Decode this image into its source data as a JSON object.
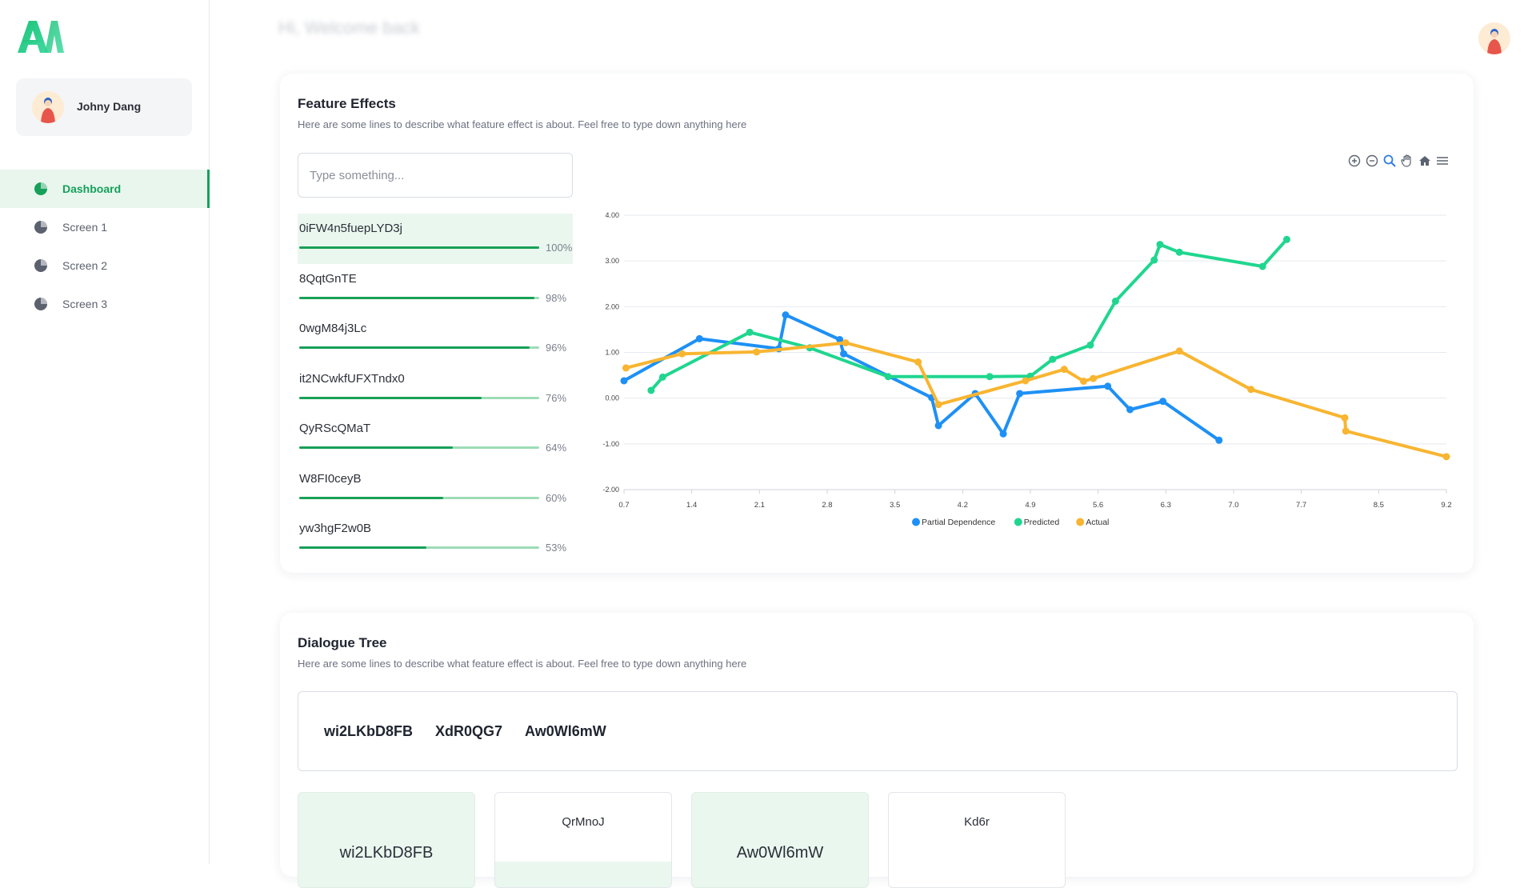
{
  "brand": {
    "logo_text": "AI"
  },
  "user": {
    "name": "Johny Dang"
  },
  "nav": {
    "items": [
      {
        "label": "Dashboard",
        "icon": "pie-chart-icon",
        "active": true
      },
      {
        "label": "Screen 1",
        "icon": "pie-chart-icon",
        "active": false
      },
      {
        "label": "Screen 2",
        "icon": "pie-chart-icon",
        "active": false
      },
      {
        "label": "Screen 3",
        "icon": "pie-chart-icon",
        "active": false
      }
    ]
  },
  "header": {
    "welcome": "Hi, Welcome back"
  },
  "feature_effects": {
    "title": "Feature Effects",
    "subtitle": "Here are some lines to describe what feature effect is about. Feel free to type down anything here",
    "search_placeholder": "Type something...",
    "features": [
      {
        "name": "0iFW4n5fuepLYD3j",
        "pct_label": "100%",
        "value": 1.0,
        "active": true
      },
      {
        "name": "8QqtGnTE",
        "pct_label": "98%",
        "value": 0.98,
        "active": false
      },
      {
        "name": "0wgM84j3Lc",
        "pct_label": "96%",
        "value": 0.96,
        "active": false
      },
      {
        "name": "it2NCwkfUFXTndx0",
        "pct_label": "76%",
        "value": 0.76,
        "active": false
      },
      {
        "name": "QyRScQMaT",
        "pct_label": "64%",
        "value": 0.64,
        "active": false
      },
      {
        "name": "W8FI0ceyB",
        "pct_label": "60%",
        "value": 0.6,
        "active": false
      },
      {
        "name": "yw3hgF2w0B",
        "pct_label": "53%",
        "value": 0.53,
        "active": false
      }
    ],
    "toolbar_icons": [
      "zoom-in-icon",
      "zoom-out-icon",
      "magnifier-icon",
      "pan-hand-icon",
      "home-icon",
      "menu-icon"
    ]
  },
  "chart_data": {
    "type": "line",
    "xlim": [
      0.7,
      9.2
    ],
    "ylim": [
      -2.0,
      4.0
    ],
    "x_ticks": [
      "0.7",
      "1.4",
      "2.1",
      "2.8",
      "3.5",
      "4.2",
      "4.9",
      "5.6",
      "6.3",
      "7.0",
      "7.7",
      "8.5",
      "9.2"
    ],
    "y_ticks": [
      "4.00",
      "3.00",
      "2.00",
      "1.00",
      "0.00",
      "-1.00",
      "-2.00"
    ],
    "legend_position": "bottom",
    "grid": true,
    "series": [
      {
        "name": "Partial Dependence",
        "color": "#1e90f5",
        "points": [
          [
            0.7,
            0.38
          ],
          [
            1.48,
            1.3
          ],
          [
            2.3,
            1.08
          ],
          [
            2.37,
            1.82
          ],
          [
            2.93,
            1.28
          ],
          [
            2.97,
            0.97
          ],
          [
            3.88,
            0.01
          ],
          [
            3.95,
            -0.6
          ],
          [
            4.33,
            0.1
          ],
          [
            4.62,
            -0.78
          ],
          [
            4.79,
            0.1
          ],
          [
            5.7,
            0.26
          ],
          [
            5.93,
            -0.25
          ],
          [
            6.27,
            -0.07
          ],
          [
            6.85,
            -0.92
          ]
        ]
      },
      {
        "name": "Predicted",
        "color": "#20d68f",
        "points": [
          [
            0.98,
            0.17
          ],
          [
            1.1,
            0.46
          ],
          [
            2.0,
            1.44
          ],
          [
            2.62,
            1.1
          ],
          [
            3.43,
            0.47
          ],
          [
            4.48,
            0.47
          ],
          [
            4.9,
            0.48
          ],
          [
            5.13,
            0.85
          ],
          [
            5.52,
            1.16
          ],
          [
            5.78,
            2.12
          ],
          [
            6.18,
            3.02
          ],
          [
            6.24,
            3.36
          ],
          [
            6.44,
            3.19
          ],
          [
            7.3,
            2.88
          ],
          [
            7.55,
            3.47
          ]
        ]
      },
      {
        "name": "Actual",
        "color": "#f8b531",
        "points": [
          [
            0.72,
            0.66
          ],
          [
            1.3,
            0.97
          ],
          [
            2.07,
            1.01
          ],
          [
            2.99,
            1.21
          ],
          [
            3.74,
            0.79
          ],
          [
            3.95,
            -0.14
          ],
          [
            4.85,
            0.38
          ],
          [
            5.25,
            0.63
          ],
          [
            5.45,
            0.37
          ],
          [
            5.55,
            0.43
          ],
          [
            6.44,
            1.03
          ],
          [
            7.18,
            0.19
          ],
          [
            8.15,
            -0.43
          ],
          [
            8.16,
            -0.72
          ],
          [
            9.2,
            -1.28
          ]
        ]
      }
    ]
  },
  "dialogue_tree": {
    "title": "Dialogue Tree",
    "subtitle": "Here are some lines to describe what feature effect is about. Feel free to type down anything here",
    "breadcrumb": [
      "wi2LKbD8FB",
      "XdR0QG7",
      "Aw0Wl6mW"
    ],
    "nodes": [
      {
        "label": "wi2LKbD8FB",
        "highlighted": true
      },
      {
        "label": "QrMnoJ",
        "highlighted": false,
        "strip": true
      },
      {
        "label": "Aw0Wl6mW",
        "highlighted": true
      },
      {
        "label": "Kd6r",
        "highlighted": false,
        "strip": false
      }
    ]
  }
}
